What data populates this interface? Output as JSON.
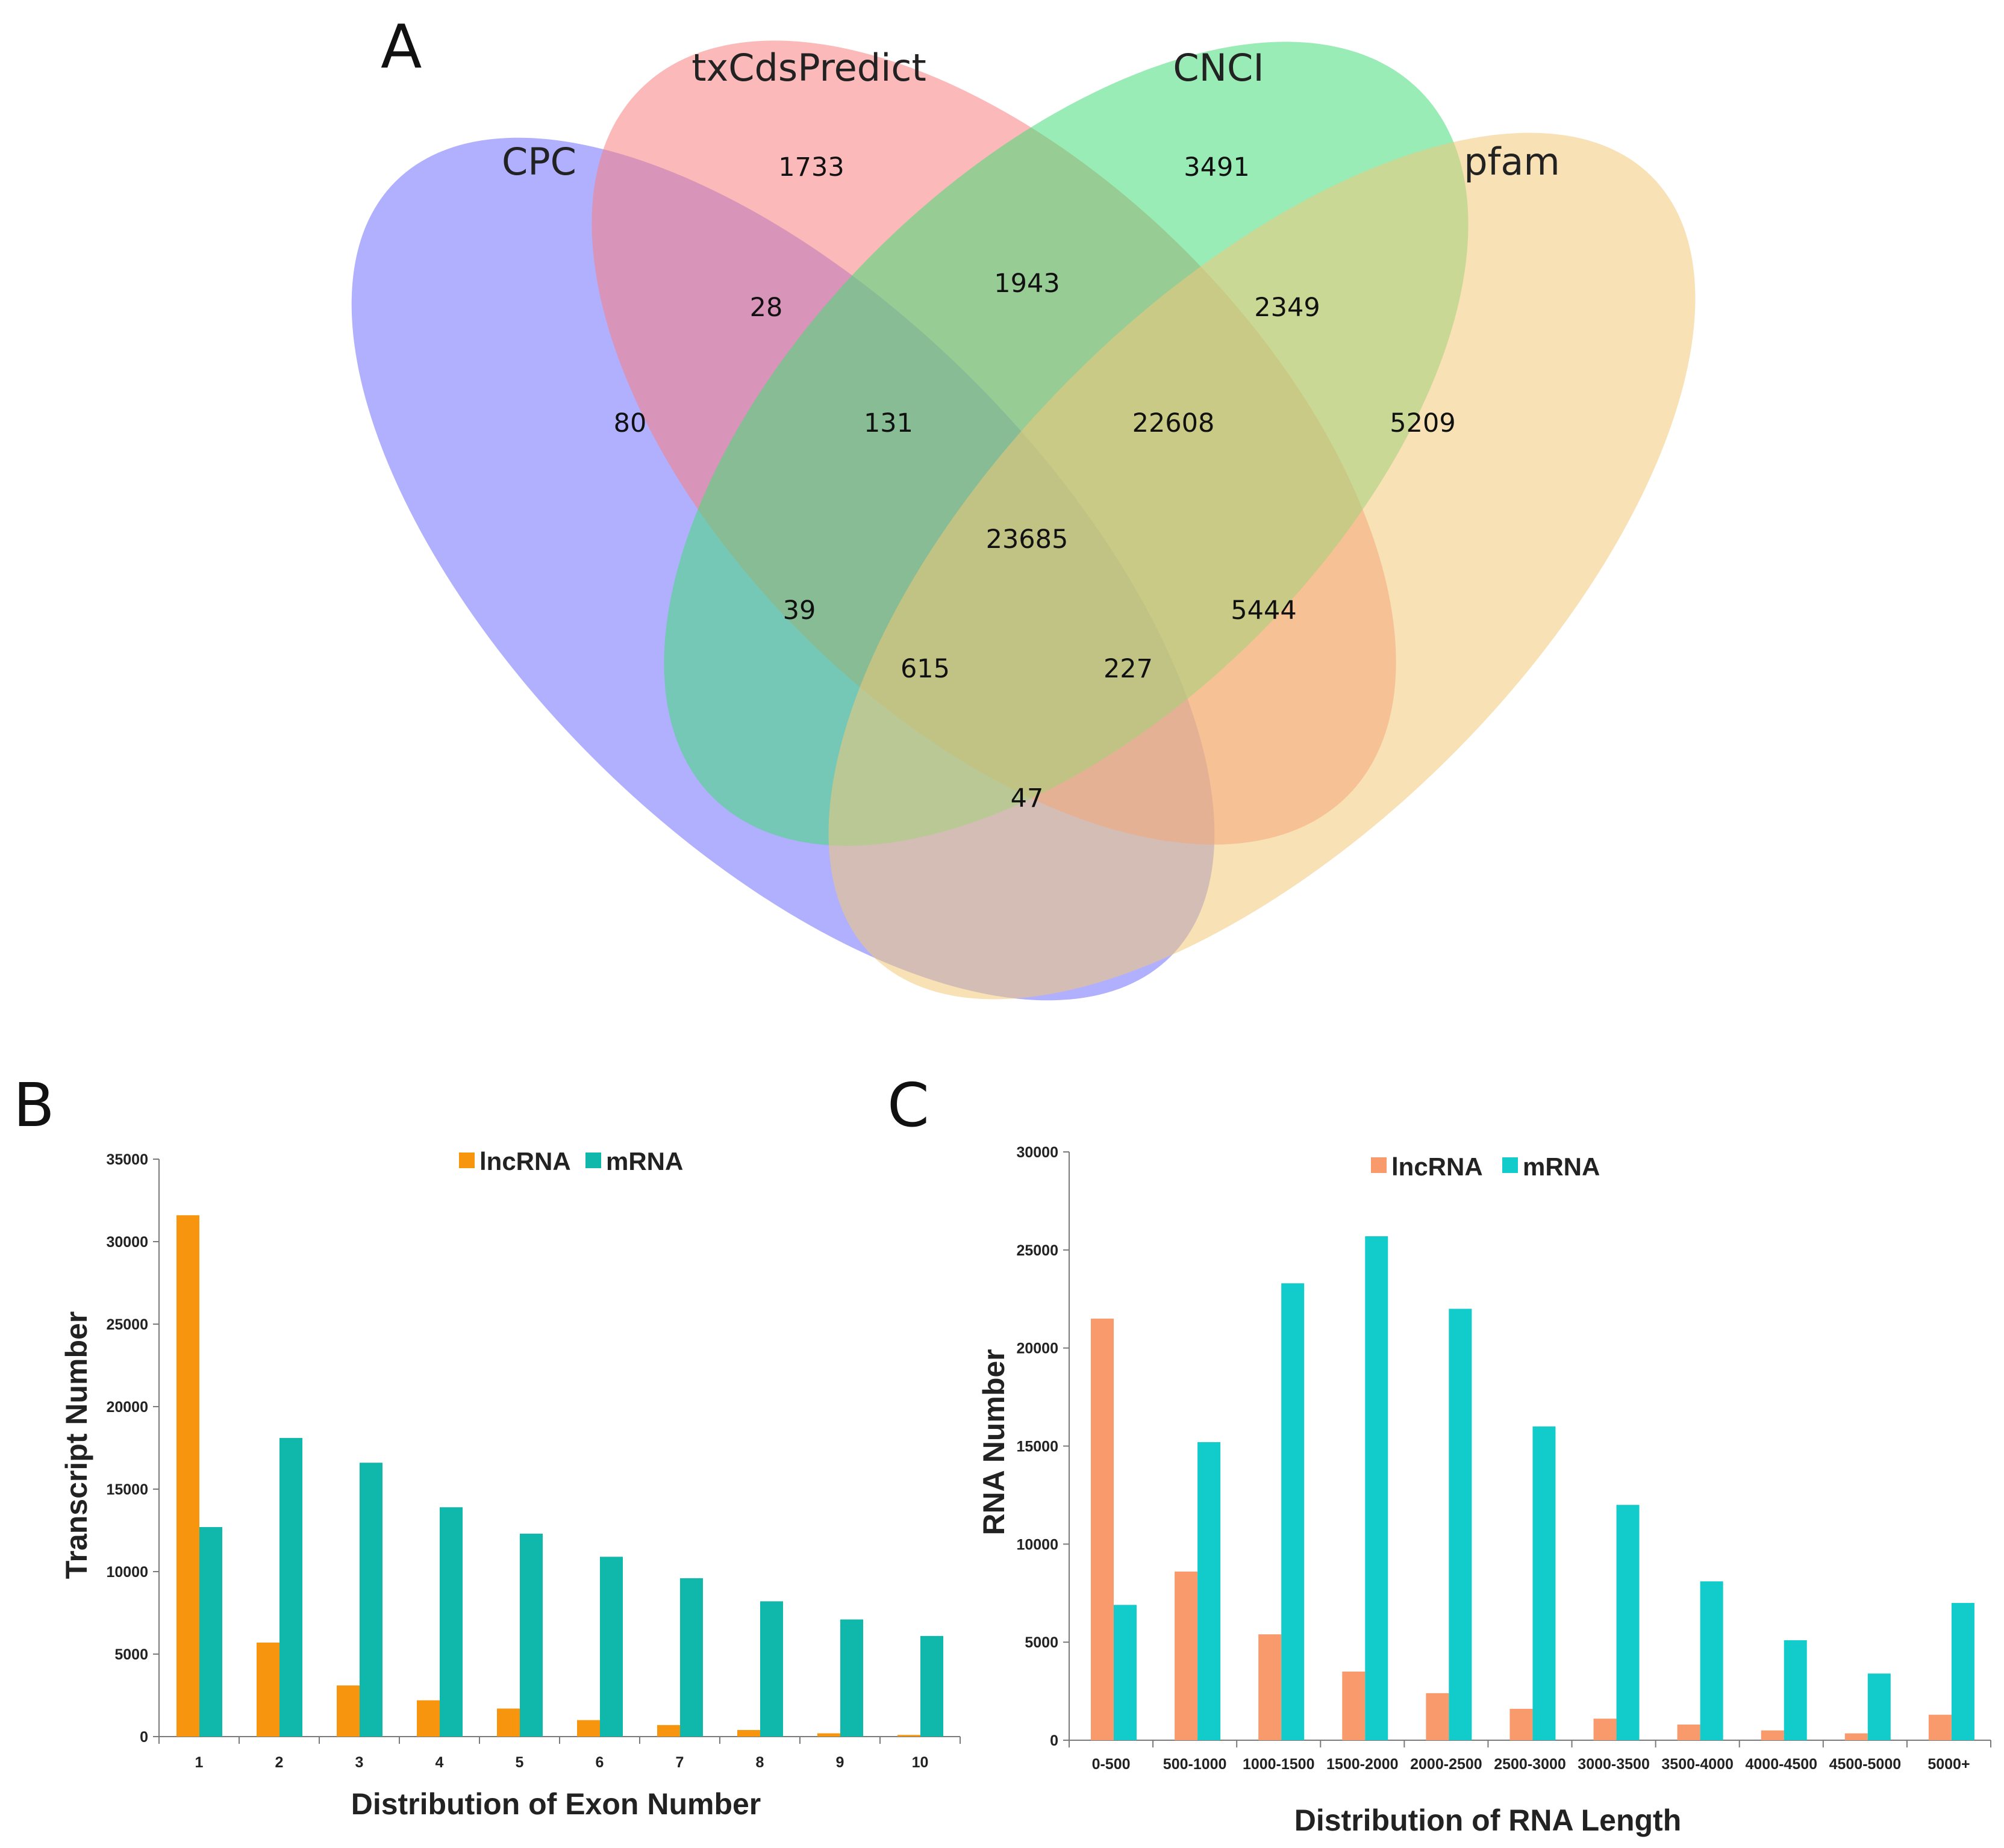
{
  "panels": {
    "a": "A",
    "b": "B",
    "c": "C"
  },
  "venn": {
    "sets": [
      {
        "name": "CPC",
        "color": "#8080ff"
      },
      {
        "name": "txCdsPredict",
        "color": "#fa8080"
      },
      {
        "name": "CNCI",
        "color": "#46dc78"
      },
      {
        "name": "pfam",
        "color": "#f0c878"
      }
    ],
    "regions": [
      {
        "sets": "txCdsPredict",
        "count": "1733"
      },
      {
        "sets": "CNCI",
        "count": "3491"
      },
      {
        "sets": "CPC",
        "count": "80"
      },
      {
        "sets": "pfam",
        "count": "5209"
      },
      {
        "sets": "CPC & txCdsPredict",
        "count": "28"
      },
      {
        "sets": "txCdsPredict & CNCI",
        "count": "1943"
      },
      {
        "sets": "CNCI & pfam",
        "count": "2349"
      },
      {
        "sets": "CPC & txCdsPredict & CNCI",
        "count": "131"
      },
      {
        "sets": "txCdsPredict & CNCI & pfam",
        "count": "22608"
      },
      {
        "sets": "all four",
        "count": "23685"
      },
      {
        "sets": "CPC & CNCI",
        "count": "39"
      },
      {
        "sets": "txCdsPredict & pfam",
        "count": "5444"
      },
      {
        "sets": "CPC & CNCI & pfam",
        "count": "615"
      },
      {
        "sets": "CPC & txCdsPredict & pfam",
        "count": "227"
      },
      {
        "sets": "CPC & pfam",
        "count": "47"
      }
    ]
  },
  "chart_data": [
    {
      "type": "bar",
      "title": "",
      "xlabel": "Distribution of Exon Number",
      "ylabel": "Transcript Number",
      "ylim": [
        0,
        35000
      ],
      "yticks": [
        0,
        5000,
        10000,
        15000,
        20000,
        25000,
        30000,
        35000
      ],
      "categories": [
        "1",
        "2",
        "3",
        "4",
        "5",
        "6",
        "7",
        "8",
        "9",
        "10"
      ],
      "legend_position": "top-center",
      "series": [
        {
          "name": "lncRNA",
          "color": "#f7950f",
          "values": [
            31600,
            5700,
            3100,
            2200,
            1700,
            1000,
            700,
            400,
            200,
            100
          ]
        },
        {
          "name": "mRNA",
          "color": "#10b8ac",
          "values": [
            12700,
            18100,
            16600,
            13900,
            12300,
            10900,
            9600,
            8200,
            7100,
            6100
          ]
        }
      ]
    },
    {
      "type": "bar",
      "title": "",
      "xlabel": "Distribution of  RNA Length",
      "ylabel": "RNA Number",
      "ylim": [
        0,
        30000
      ],
      "yticks": [
        0,
        5000,
        10000,
        15000,
        20000,
        25000,
        30000
      ],
      "categories": [
        "0-500",
        "500-1000",
        "1000-1500",
        "1500-2000",
        "2000-2500",
        "2500-3000",
        "3000-3500",
        "3500-4000",
        "4000-4500",
        "4500-5000",
        "5000+"
      ],
      "legend_position": "top-center",
      "series": [
        {
          "name": "lncRNA",
          "color": "#f89a6b",
          "values": [
            21500,
            8600,
            5400,
            3500,
            2400,
            1600,
            1100,
            800,
            500,
            350,
            1300
          ]
        },
        {
          "name": "mRNA",
          "color": "#12cccc",
          "values": [
            6900,
            15200,
            23300,
            25700,
            22000,
            16000,
            12000,
            8100,
            5100,
            3400,
            7000
          ]
        }
      ]
    }
  ]
}
